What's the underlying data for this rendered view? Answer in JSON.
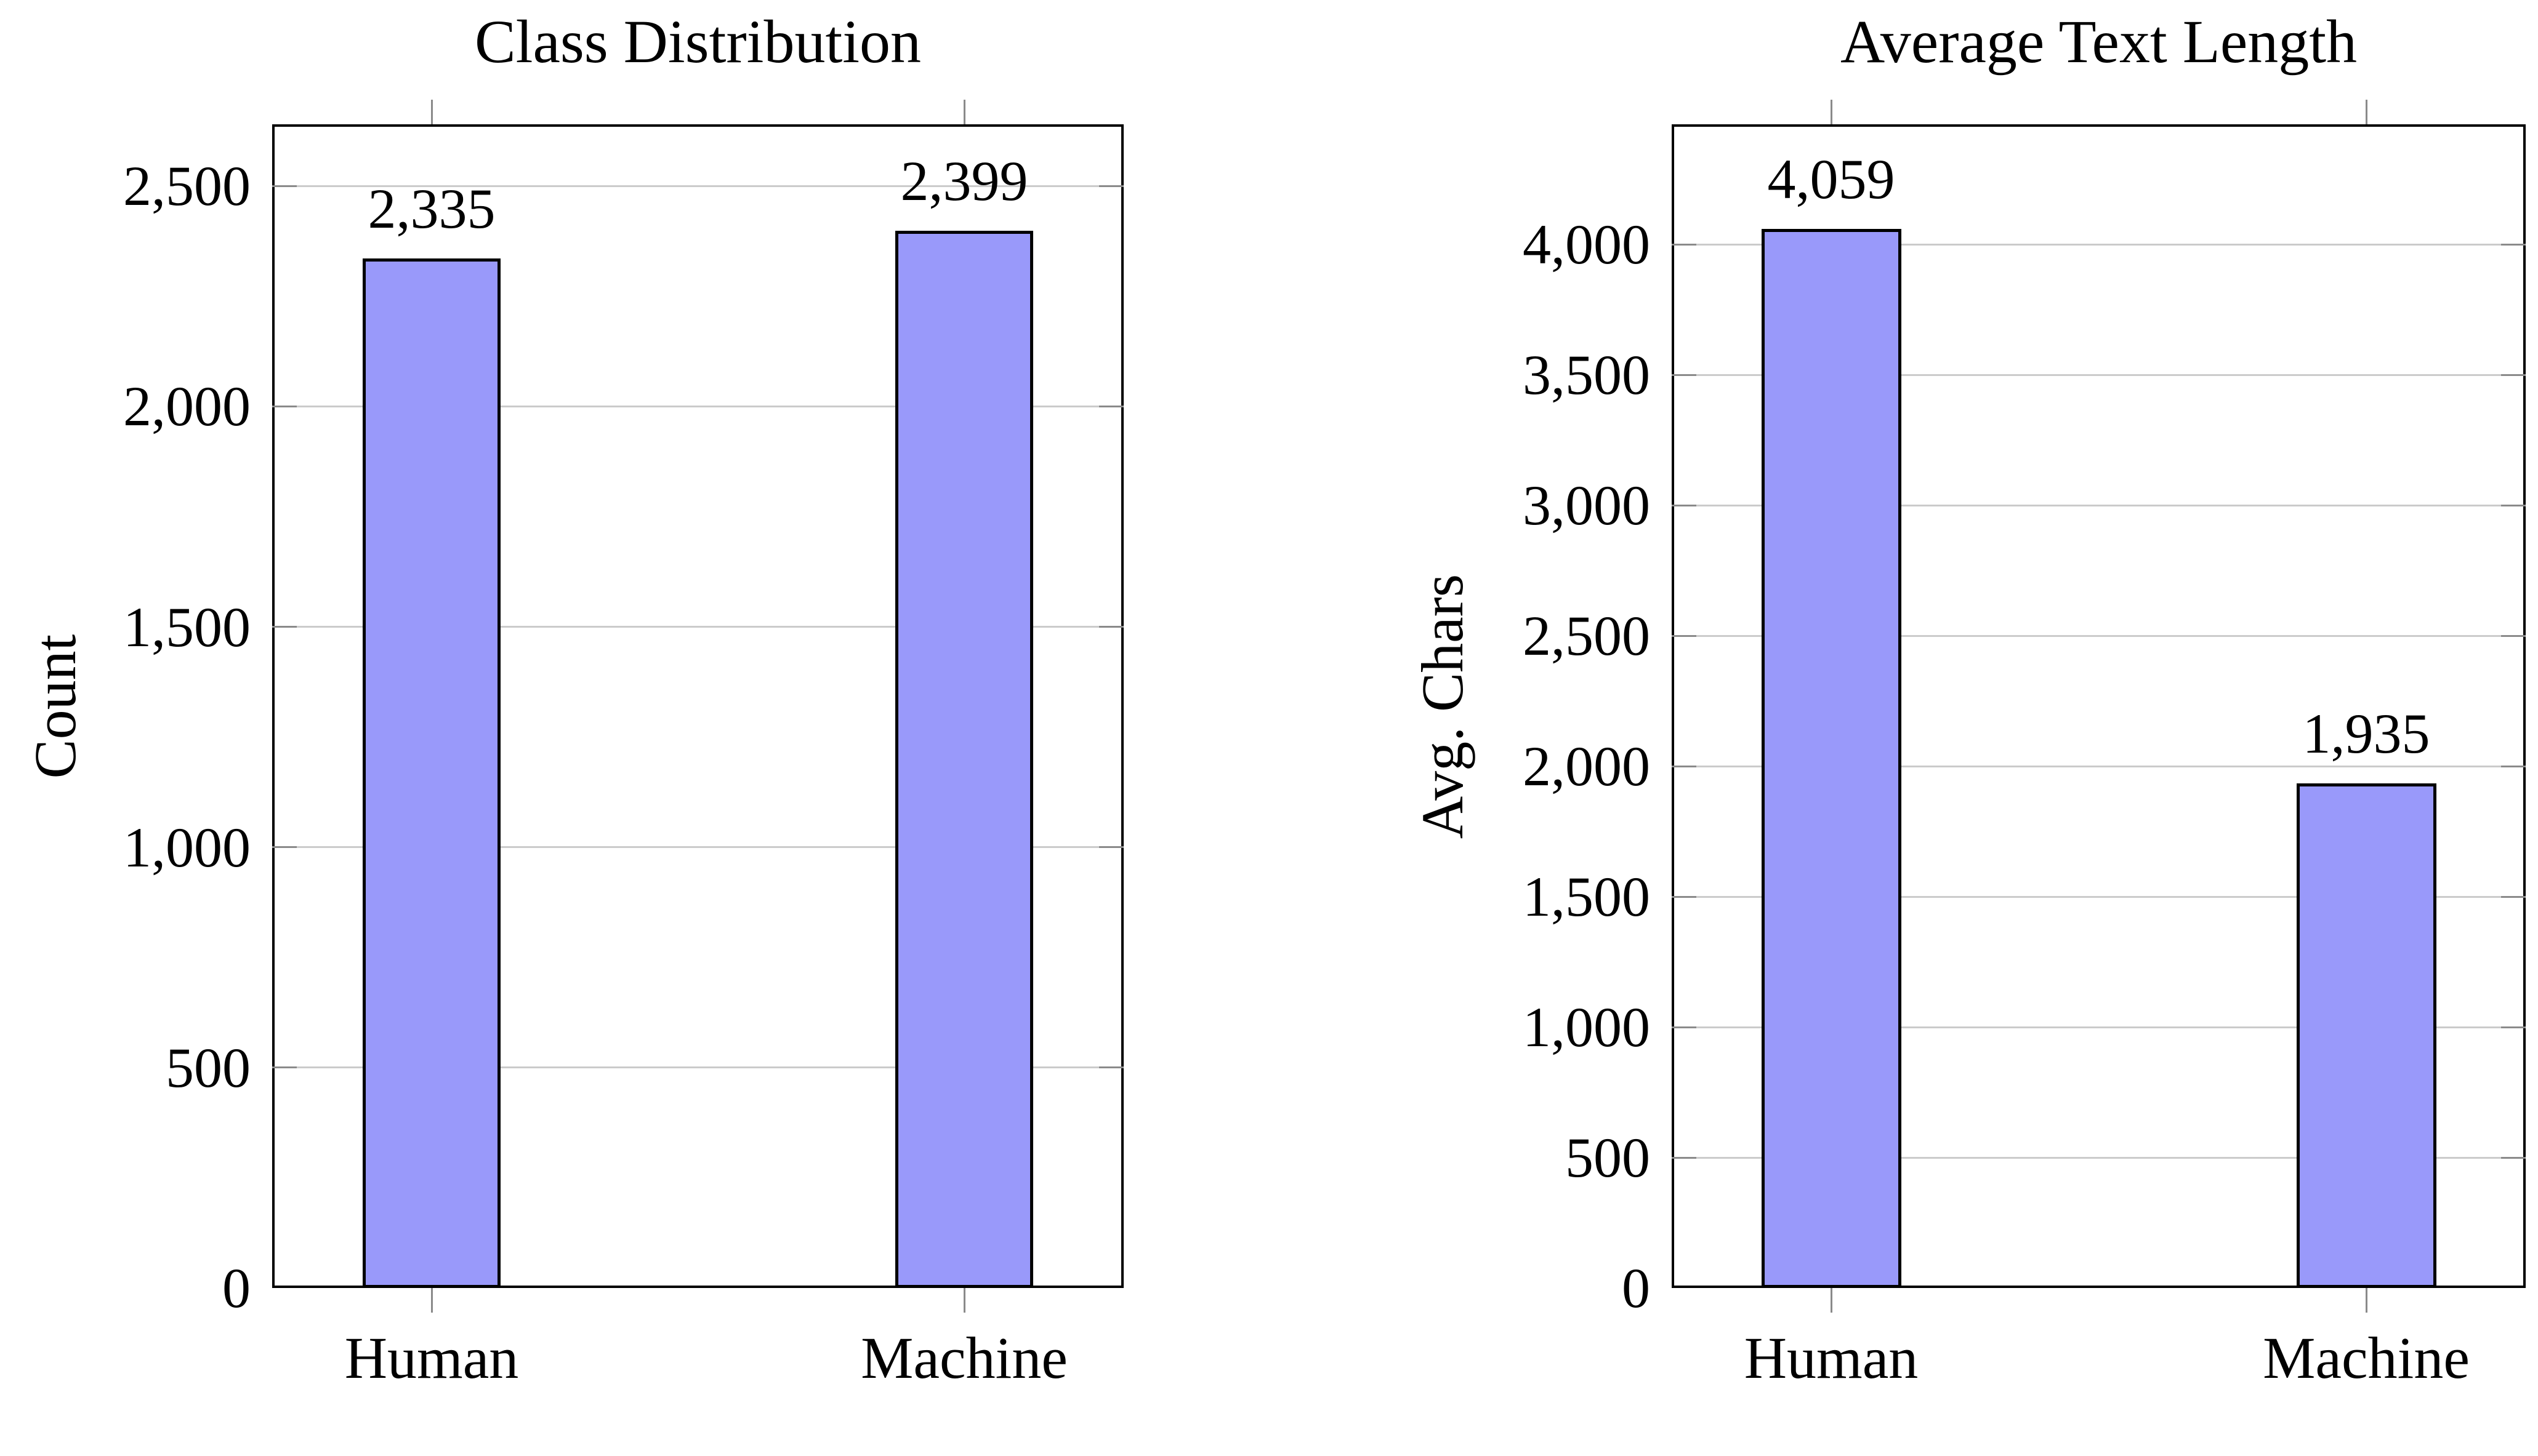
{
  "figure": {
    "background": "#ffffff"
  },
  "colors": {
    "bar_fill": "#9999FA",
    "bar_border": "#000000",
    "axis": "#000000",
    "grid": "#cbcbcb",
    "tick": "#8a8a8a",
    "text": "#000000"
  },
  "chart_data": [
    {
      "type": "bar",
      "title": "Class Distribution",
      "ylabel": "Count",
      "xlabel": "",
      "categories": [
        "Human",
        "Machine"
      ],
      "values": [
        2335,
        2399
      ],
      "value_labels": [
        "2,335",
        "2,399"
      ],
      "yticks": [
        0,
        500,
        1000,
        1500,
        2000,
        2500
      ],
      "ytick_labels": [
        "0",
        "500",
        "1,000",
        "1,500",
        "2,000",
        "2,500"
      ],
      "ylim": [
        0,
        2640
      ],
      "grid": "horizontal",
      "legend": "none"
    },
    {
      "type": "bar",
      "title": "Average Text Length",
      "ylabel": "Avg. Chars",
      "xlabel": "",
      "categories": [
        "Human",
        "Machine"
      ],
      "values": [
        4059,
        1935
      ],
      "value_labels": [
        "4,059",
        "1,935"
      ],
      "yticks": [
        0,
        500,
        1000,
        1500,
        2000,
        2500,
        3000,
        3500,
        4000
      ],
      "ytick_labels": [
        "0",
        "500",
        "1,000",
        "1,500",
        "2,000",
        "2,500",
        "3,000",
        "3,500",
        "4,000"
      ],
      "ylim": [
        0,
        4460
      ],
      "grid": "horizontal",
      "legend": "none"
    }
  ]
}
